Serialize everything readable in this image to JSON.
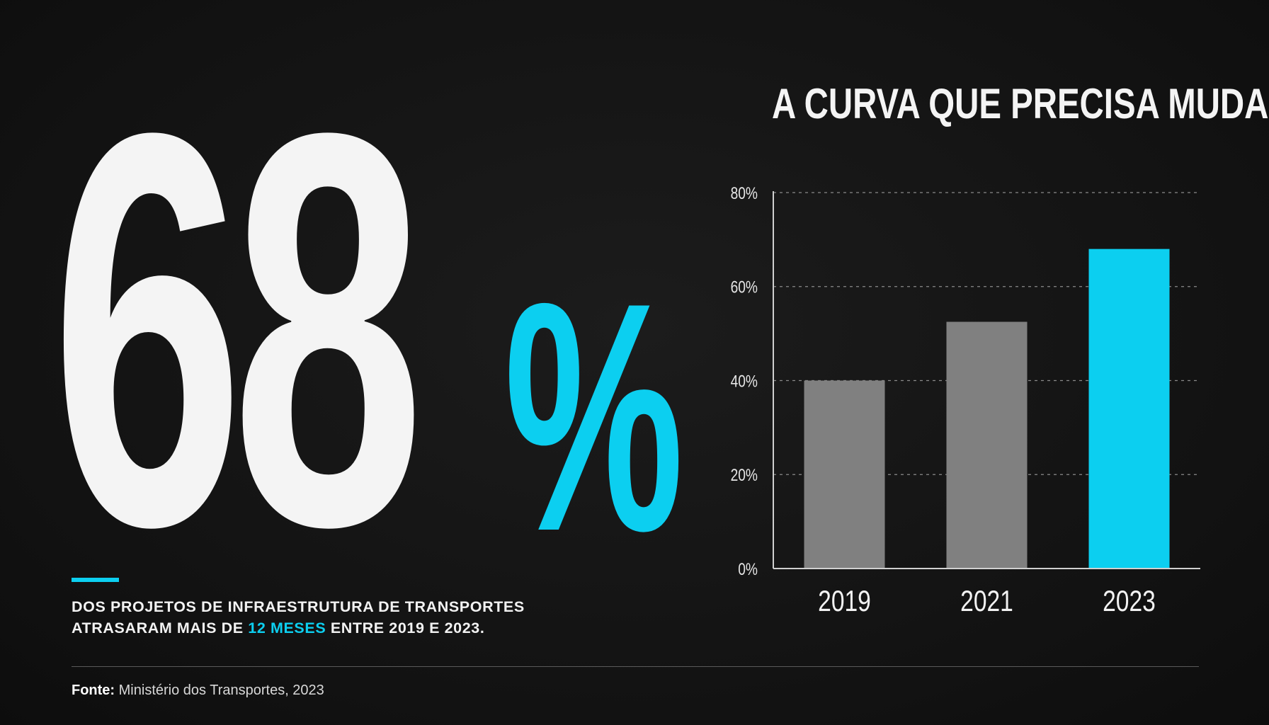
{
  "headline": {
    "number": "68",
    "percent_sign": "%",
    "caption_line1": "DOS PROJETOS DE INFRAESTRUTURA DE TRANSPORTES",
    "caption_line2_before": "ATRASARAM MAIS DE ",
    "caption_line2_highlight": "12 MESES",
    "caption_line2_after": " ENTRE 2019 E 2023."
  },
  "source": {
    "label": "Fonte:",
    "text": " Ministério dos Transportes, 2023"
  },
  "colors": {
    "background": "#141414",
    "accent": "#0ccff0",
    "bar_neutral": "#808080",
    "text": "#f4f4f4"
  },
  "chart_data": {
    "type": "bar",
    "title": "A CURVA QUE PRECISA MUDAR",
    "categories": [
      "2019",
      "2021",
      "2023"
    ],
    "values": [
      40,
      52.5,
      68
    ],
    "ylim": [
      0,
      80
    ],
    "yticks": [
      0,
      20,
      40,
      60,
      80
    ],
    "ytick_labels": [
      "0%",
      "20%",
      "40%",
      "60%",
      "80%"
    ],
    "grid": true,
    "highlight_category": "2023"
  }
}
